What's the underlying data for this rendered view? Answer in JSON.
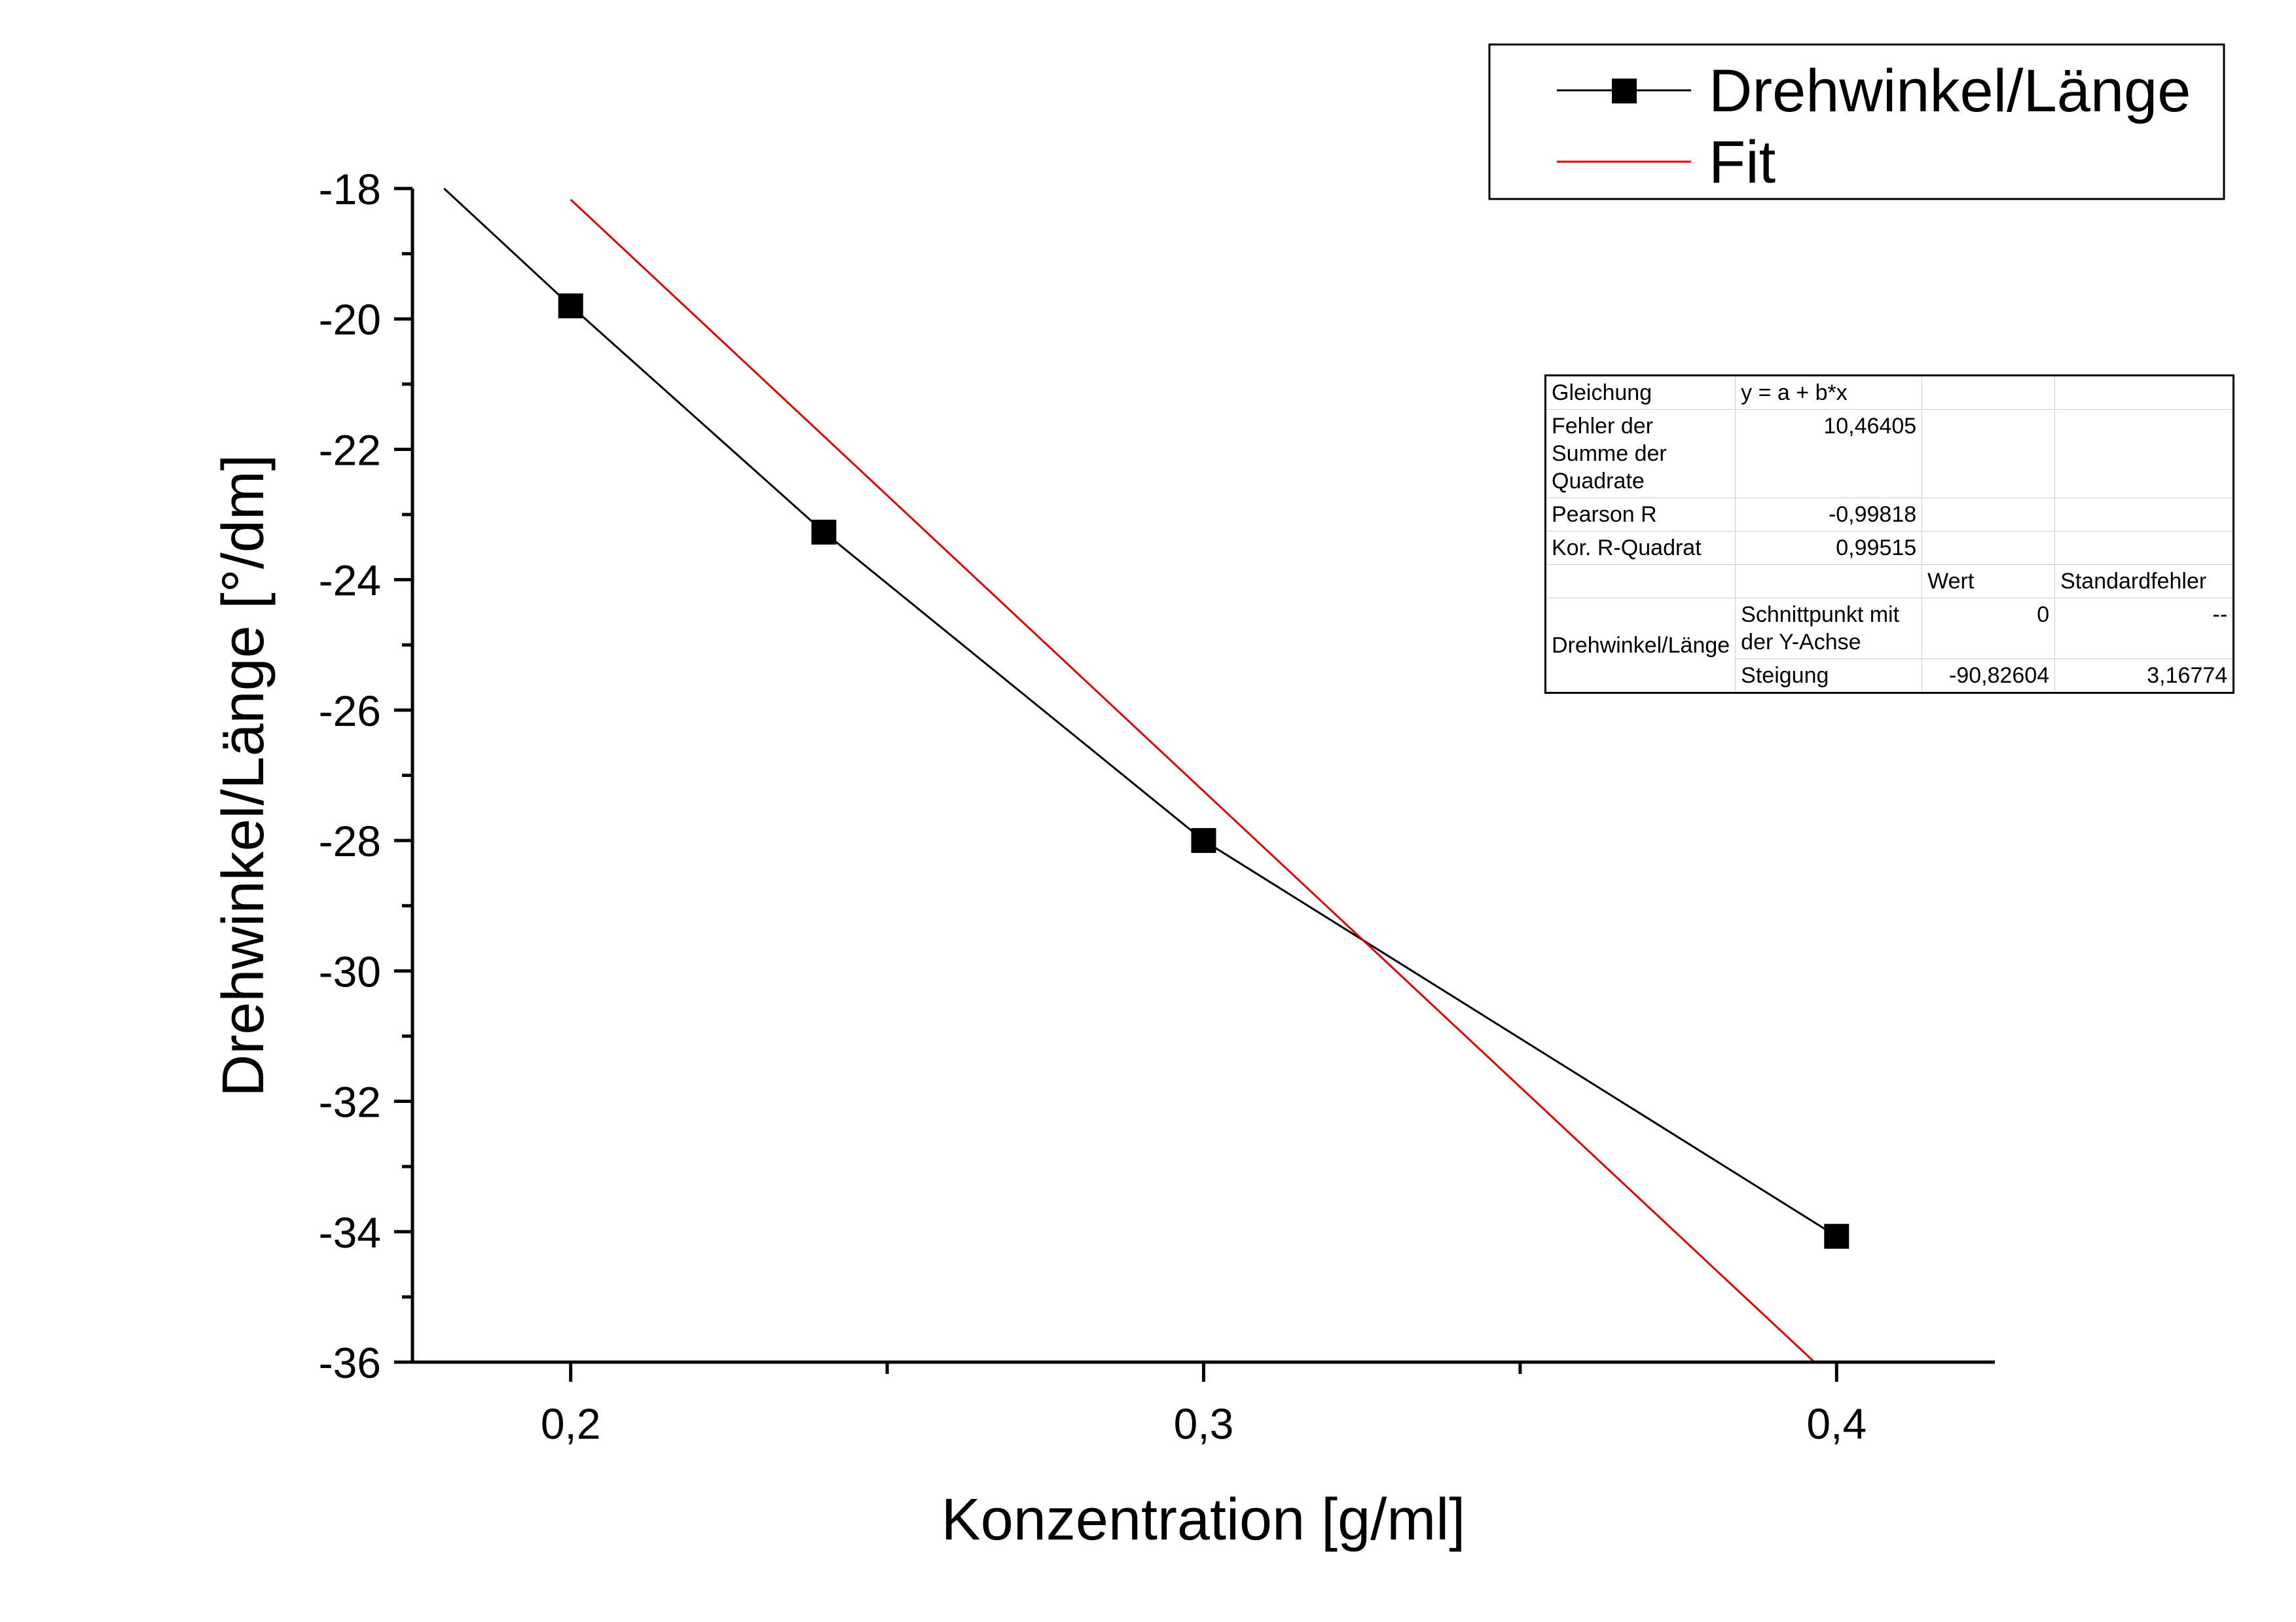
{
  "chart_data": {
    "type": "line",
    "xlabel": "Konzentration [g/ml]",
    "ylabel": "Drehwinkel/Länge [°/dm]",
    "xlim": [
      0.175,
      0.425
    ],
    "ylim": [
      -36,
      -18
    ],
    "x_ticks": [
      0.2,
      0.3,
      0.4
    ],
    "x_tick_labels": [
      "0,2",
      "0,3",
      "0,4"
    ],
    "x_minor_ticks": [
      0.25,
      0.35
    ],
    "y_ticks": [
      -36,
      -34,
      -32,
      -30,
      -28,
      -26,
      -24,
      -22,
      -20,
      -18
    ],
    "y_tick_labels": [
      "-36",
      "-34",
      "-32",
      "-30",
      "-28",
      "-26",
      "-24",
      "-22",
      "-20",
      "-18"
    ],
    "y_minor_ticks": [
      -35,
      -33,
      -31,
      -29,
      -27,
      -25,
      -23,
      -21,
      -19
    ],
    "grid": false,
    "legend_position": "top-right",
    "series": [
      {
        "name": "Drehwinkel/Länge",
        "color": "#000000",
        "marker": "square",
        "x": [
          0.18,
          0.2,
          0.24,
          0.3,
          0.4
        ],
        "y": [
          -18.0,
          -19.8,
          -23.27,
          -28.0,
          -34.07
        ],
        "marker_mask": [
          false,
          true,
          true,
          true,
          true
        ]
      },
      {
        "name": "Fit",
        "color": "#e00000",
        "marker": "none",
        "x": [
          0.2,
          0.3965
        ],
        "y": [
          -18.17,
          -36.0
        ]
      }
    ],
    "fit_table": {
      "rows": [
        [
          "Gleichung",
          "y = a + b*x",
          "",
          ""
        ],
        [
          "Fehler der Summe der Quadrate",
          "10,46405",
          "",
          ""
        ],
        [
          "Pearson R",
          "-0,99818",
          "",
          ""
        ],
        [
          "Kor. R-Quadrat",
          "0,99515",
          "",
          ""
        ],
        [
          "",
          "",
          "Wert",
          "Standardfehler"
        ]
      ],
      "param_label": "Drehwinkel/Länge",
      "params": [
        [
          "Schnittpunkt mit der Y-Achse",
          "0",
          "--"
        ],
        [
          "Steigung",
          "-90,82604",
          "3,16774"
        ]
      ]
    }
  }
}
